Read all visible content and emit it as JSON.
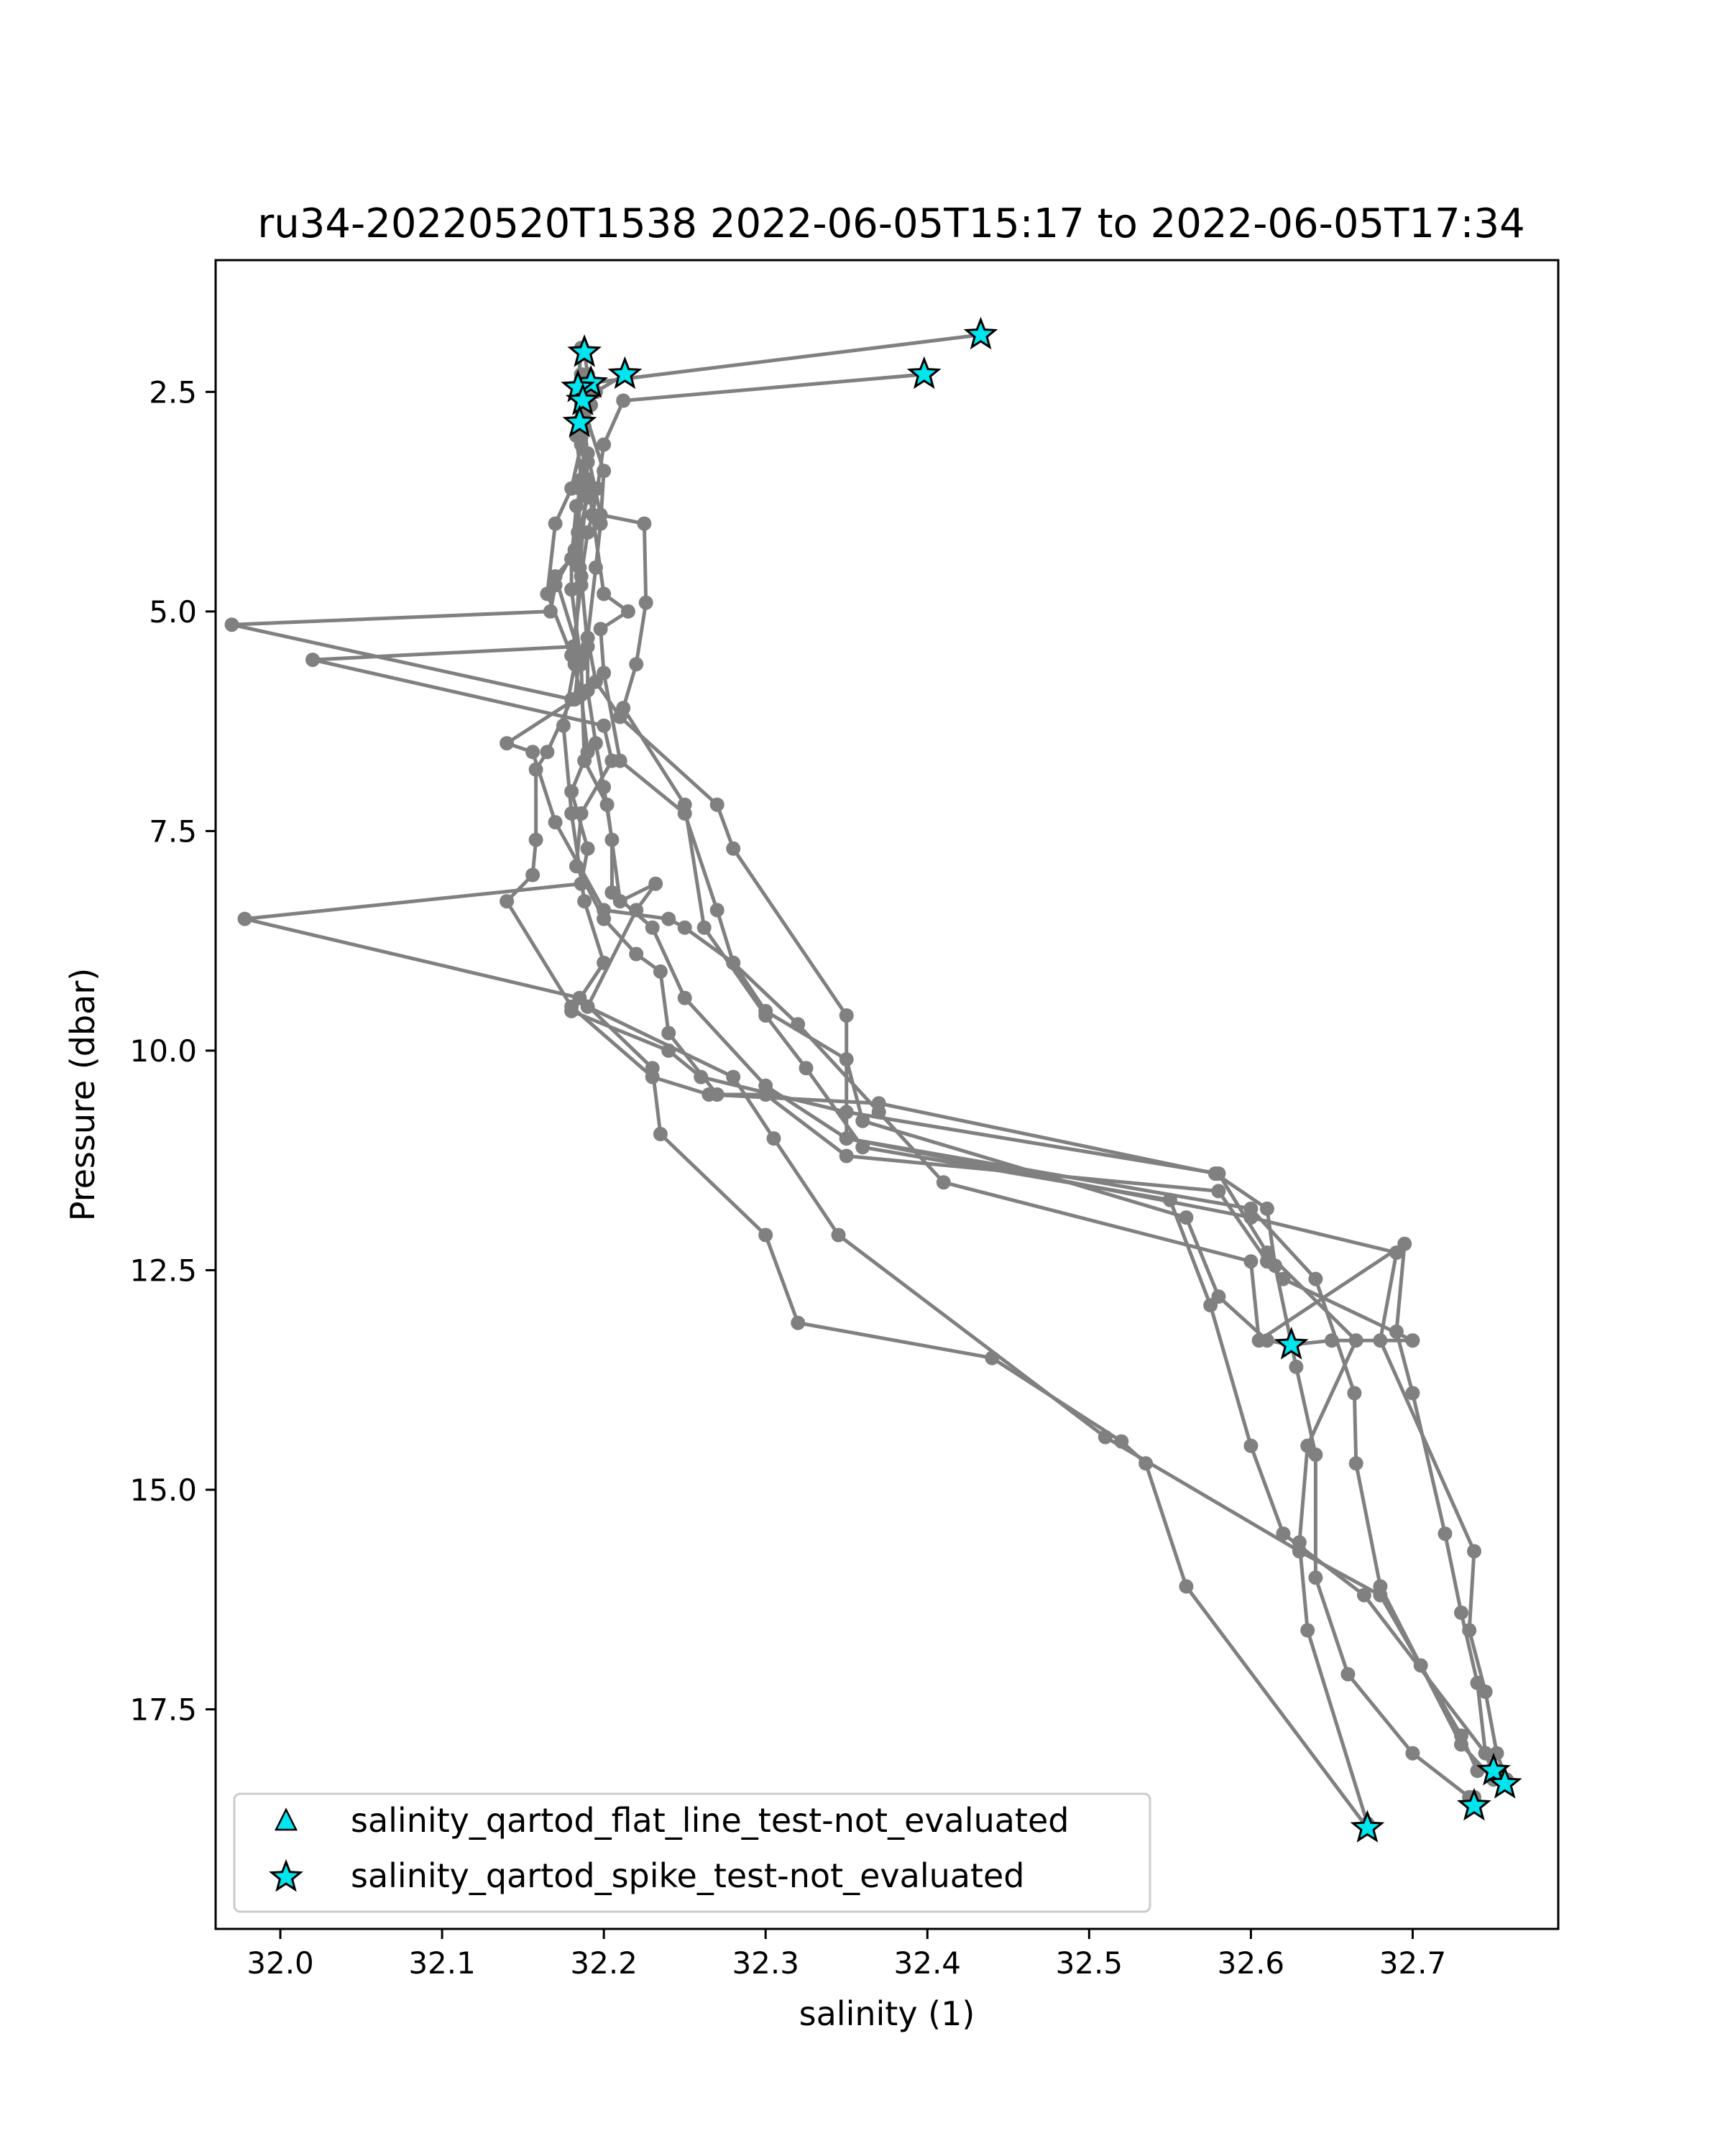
{
  "chart_data": {
    "type": "line",
    "title": "ru34-20220520T1538 2022-06-05T15:17 to 2022-06-05T17:34",
    "xlabel": "salinity (1)",
    "ylabel": "Pressure (dbar)",
    "xlim": [
      31.96,
      32.79
    ],
    "ylim": [
      20.0,
      1.0
    ],
    "y_inverted": true,
    "grid": false,
    "x_ticks": [
      "32.0",
      "32.1",
      "32.2",
      "32.3",
      "32.4",
      "32.5",
      "32.6",
      "32.7"
    ],
    "x_tick_values": [
      32.0,
      32.1,
      32.2,
      32.3,
      32.4,
      32.5,
      32.6,
      32.7
    ],
    "y_ticks": [
      "2.5",
      "5.0",
      "7.5",
      "10.0",
      "12.5",
      "15.0",
      "17.5"
    ],
    "y_tick_values": [
      2.5,
      5.0,
      7.5,
      10.0,
      12.5,
      15.0,
      17.5
    ],
    "line_color": "#808080",
    "marker_color": "#00e5ee",
    "legend": {
      "position": "lower-left",
      "entries": [
        {
          "marker": "triangle",
          "label": "salinity_qartod_flat_line_test-not_evaluated"
        },
        {
          "marker": "star",
          "label": "salinity_qartod_spike_test-not_evaluated"
        }
      ]
    },
    "series": [
      {
        "points": [
          [
            32.433,
            1.85
          ],
          [
            32.191,
            2.4
          ],
          [
            32.186,
            2.65
          ],
          [
            32.19,
            3.5
          ],
          [
            32.185,
            4.5
          ],
          [
            32.182,
            5.6
          ],
          [
            32.175,
            6.3
          ],
          [
            32.18,
            7.3
          ],
          [
            32.188,
            8.3
          ],
          [
            32.2,
            9.0
          ],
          [
            32.18,
            9.55
          ],
          [
            32.24,
            10.0
          ],
          [
            32.26,
            10.3
          ],
          [
            32.35,
            10.7
          ],
          [
            32.58,
            11.4
          ],
          [
            32.61,
            12.3
          ],
          [
            32.665,
            13.3
          ],
          [
            32.635,
            14.5
          ],
          [
            32.63,
            15.6
          ],
          [
            32.635,
            16.6
          ],
          [
            32.672,
            18.8
          ]
        ]
      },
      {
        "points": [
          [
            32.398,
            2.3
          ],
          [
            32.212,
            2.6
          ],
          [
            32.2,
            3.1
          ],
          [
            32.196,
            3.6
          ],
          [
            32.193,
            3.9
          ],
          [
            32.19,
            4.1
          ],
          [
            32.186,
            4.6
          ],
          [
            32.19,
            5.4
          ],
          [
            32.19,
            5.9
          ],
          [
            32.195,
            6.5
          ],
          [
            32.2,
            7.0
          ],
          [
            32.205,
            7.6
          ],
          [
            32.205,
            8.2
          ],
          [
            32.23,
            8.6
          ],
          [
            32.25,
            9.4
          ],
          [
            32.3,
            10.4
          ],
          [
            32.35,
            11.0
          ],
          [
            32.6,
            11.8
          ],
          [
            32.64,
            12.6
          ],
          [
            32.664,
            13.9
          ],
          [
            32.665,
            14.7
          ],
          [
            32.68,
            16.1
          ],
          [
            32.705,
            17.0
          ],
          [
            32.73,
            17.9
          ],
          [
            32.75,
            18.3
          ]
        ]
      },
      {
        "points": [
          [
            32.213,
            2.3
          ],
          [
            32.195,
            2.5
          ],
          [
            32.186,
            2.9
          ],
          [
            32.19,
            3.7
          ],
          [
            32.182,
            4.3
          ],
          [
            32.17,
            4.7
          ],
          [
            32.167,
            5.0
          ],
          [
            31.97,
            5.15
          ],
          [
            32.18,
            6.0
          ],
          [
            32.165,
            6.6
          ],
          [
            32.158,
            6.8
          ],
          [
            32.158,
            7.6
          ],
          [
            32.156,
            8.0
          ],
          [
            32.14,
            8.3
          ],
          [
            32.18,
            9.5
          ],
          [
            32.23,
            10.3
          ],
          [
            32.265,
            10.5
          ],
          [
            32.37,
            10.6
          ],
          [
            32.578,
            11.4
          ],
          [
            32.61,
            11.8
          ],
          [
            32.615,
            12.45
          ],
          [
            32.628,
            13.6
          ],
          [
            32.64,
            14.6
          ],
          [
            32.64,
            16.0
          ],
          [
            32.66,
            17.1
          ],
          [
            32.7,
            18.0
          ],
          [
            32.735,
            18.5
          ],
          [
            32.738,
            18.5
          ]
        ]
      },
      {
        "points": [
          [
            32.188,
            2.05
          ],
          [
            32.19,
            2.3
          ],
          [
            32.188,
            2.8
          ],
          [
            32.19,
            3.3
          ],
          [
            32.183,
            3.8
          ],
          [
            32.18,
            4.4
          ],
          [
            32.17,
            4.6
          ],
          [
            32.185,
            5.5
          ],
          [
            32.182,
            6.0
          ],
          [
            32.14,
            6.5
          ],
          [
            32.156,
            6.6
          ],
          [
            32.17,
            7.4
          ],
          [
            32.2,
            8.4
          ],
          [
            32.24,
            8.5
          ],
          [
            32.25,
            8.6
          ],
          [
            32.28,
            9.0
          ],
          [
            32.32,
            9.7
          ],
          [
            32.37,
            10.7
          ],
          [
            32.41,
            11.5
          ],
          [
            32.6,
            12.4
          ],
          [
            32.605,
            13.3
          ],
          [
            32.695,
            12.2
          ],
          [
            32.69,
            13.2
          ],
          [
            32.7,
            13.9
          ],
          [
            32.72,
            15.5
          ],
          [
            32.73,
            16.4
          ],
          [
            32.74,
            17.2
          ],
          [
            32.745,
            18.0
          ],
          [
            32.75,
            18.25
          ]
        ]
      },
      {
        "points": [
          [
            32.185,
            2.55
          ],
          [
            32.186,
            2.8
          ],
          [
            32.19,
            3.2
          ],
          [
            32.198,
            3.9
          ],
          [
            32.225,
            4.0
          ],
          [
            32.226,
            4.9
          ],
          [
            32.22,
            5.6
          ],
          [
            32.212,
            6.1
          ],
          [
            32.25,
            7.2
          ],
          [
            32.262,
            8.6
          ],
          [
            32.3,
            9.6
          ],
          [
            32.325,
            10.2
          ],
          [
            32.36,
            11.1
          ],
          [
            32.55,
            11.7
          ],
          [
            32.575,
            12.9
          ],
          [
            32.6,
            14.5
          ],
          [
            32.62,
            15.5
          ],
          [
            32.67,
            16.2
          ],
          [
            32.745,
            18.0
          ],
          [
            32.755,
            18.3
          ]
        ]
      },
      {
        "points": [
          [
            32.185,
            2.5
          ],
          [
            32.188,
            2.9
          ],
          [
            32.19,
            3.5
          ],
          [
            32.2,
            4.8
          ],
          [
            32.215,
            5.0
          ],
          [
            32.198,
            5.2
          ],
          [
            32.2,
            5.7
          ],
          [
            32.21,
            6.7
          ],
          [
            32.25,
            7.3
          ],
          [
            32.27,
            8.4
          ],
          [
            32.28,
            9.0
          ],
          [
            32.3,
            9.55
          ],
          [
            32.35,
            10.1
          ],
          [
            32.36,
            10.8
          ],
          [
            32.56,
            11.9
          ],
          [
            32.58,
            12.8
          ],
          [
            32.61,
            13.3
          ],
          [
            32.625,
            13.35
          ],
          [
            32.65,
            13.3
          ],
          [
            32.7,
            13.3
          ]
        ]
      },
      {
        "points": [
          [
            32.186,
            2.0
          ],
          [
            32.184,
            2.45
          ],
          [
            32.183,
            3.0
          ],
          [
            32.186,
            3.5
          ],
          [
            32.184,
            4.1
          ],
          [
            32.186,
            4.7
          ],
          [
            32.181,
            5.4
          ],
          [
            32.02,
            5.55
          ],
          [
            32.2,
            6.3
          ],
          [
            32.205,
            6.7
          ],
          [
            32.186,
            7.3
          ],
          [
            32.183,
            7.9
          ],
          [
            32.2,
            8.5
          ],
          [
            32.22,
            8.9
          ],
          [
            32.235,
            9.1
          ],
          [
            32.24,
            9.8
          ],
          [
            32.27,
            10.5
          ],
          [
            32.3,
            10.5
          ],
          [
            32.35,
            11.2
          ],
          [
            32.58,
            11.6
          ],
          [
            32.61,
            12.4
          ],
          [
            32.62,
            12.6
          ],
          [
            32.7,
            13.3
          ]
        ]
      },
      {
        "points": [
          [
            32.19,
            2.55
          ],
          [
            32.186,
            3.1
          ],
          [
            32.18,
            3.6
          ],
          [
            32.17,
            4.0
          ],
          [
            32.165,
            4.8
          ],
          [
            32.18,
            5.5
          ],
          [
            32.186,
            5.95
          ],
          [
            32.19,
            6.6
          ],
          [
            32.18,
            7.05
          ],
          [
            32.19,
            7.7
          ],
          [
            32.186,
            8.1
          ],
          [
            31.978,
            8.5
          ],
          [
            32.185,
            9.4
          ],
          [
            32.23,
            10.2
          ],
          [
            32.235,
            10.95
          ],
          [
            32.3,
            12.1
          ],
          [
            32.32,
            13.1
          ],
          [
            32.44,
            13.5
          ],
          [
            32.52,
            14.45
          ],
          [
            32.535,
            14.7
          ],
          [
            32.56,
            16.1
          ],
          [
            32.672,
            18.85
          ]
        ]
      },
      {
        "points": [
          [
            32.19,
            2.3
          ],
          [
            32.192,
            2.65
          ],
          [
            32.185,
            3.6
          ],
          [
            32.18,
            4.4
          ],
          [
            32.18,
            4.75
          ],
          [
            32.186,
            5.6
          ],
          [
            32.188,
            6.7
          ],
          [
            32.202,
            7.2
          ],
          [
            32.21,
            8.3
          ],
          [
            32.232,
            8.1
          ],
          [
            32.22,
            8.4
          ],
          [
            32.19,
            9.5
          ],
          [
            32.28,
            10.3
          ],
          [
            32.305,
            11.0
          ],
          [
            32.345,
            12.1
          ],
          [
            32.51,
            14.4
          ],
          [
            32.63,
            15.7
          ],
          [
            32.68,
            16.2
          ],
          [
            32.73,
            17.8
          ],
          [
            32.74,
            18.2
          ]
        ]
      },
      {
        "points": [
          [
            32.186,
            2.3
          ],
          [
            32.186,
            2.6
          ],
          [
            32.2,
            3.4
          ],
          [
            32.198,
            4.0
          ],
          [
            32.195,
            4.5
          ],
          [
            32.19,
            5.3
          ],
          [
            32.195,
            5.8
          ],
          [
            32.21,
            6.2
          ],
          [
            32.27,
            7.2
          ],
          [
            32.28,
            7.7
          ],
          [
            32.35,
            9.6
          ],
          [
            32.35,
            11.0
          ],
          [
            32.6,
            11.9
          ],
          [
            32.69,
            12.3
          ],
          [
            32.68,
            13.3
          ],
          [
            32.738,
            15.7
          ],
          [
            32.735,
            16.6
          ],
          [
            32.745,
            17.3
          ],
          [
            32.752,
            18.0
          ],
          [
            32.758,
            18.3
          ]
        ]
      }
    ],
    "flagged_spike_points": [
      [
        32.433,
        1.85
      ],
      [
        32.398,
        2.3
      ],
      [
        32.213,
        2.3
      ],
      [
        32.188,
        2.05
      ],
      [
        32.192,
        2.4
      ],
      [
        32.184,
        2.45
      ],
      [
        32.187,
        2.6
      ],
      [
        32.185,
        2.85
      ],
      [
        32.625,
        13.35
      ],
      [
        32.75,
        18.2
      ],
      [
        32.757,
        18.35
      ],
      [
        32.738,
        18.6
      ],
      [
        32.672,
        18.85
      ]
    ],
    "flagged_flat_line_points": []
  }
}
